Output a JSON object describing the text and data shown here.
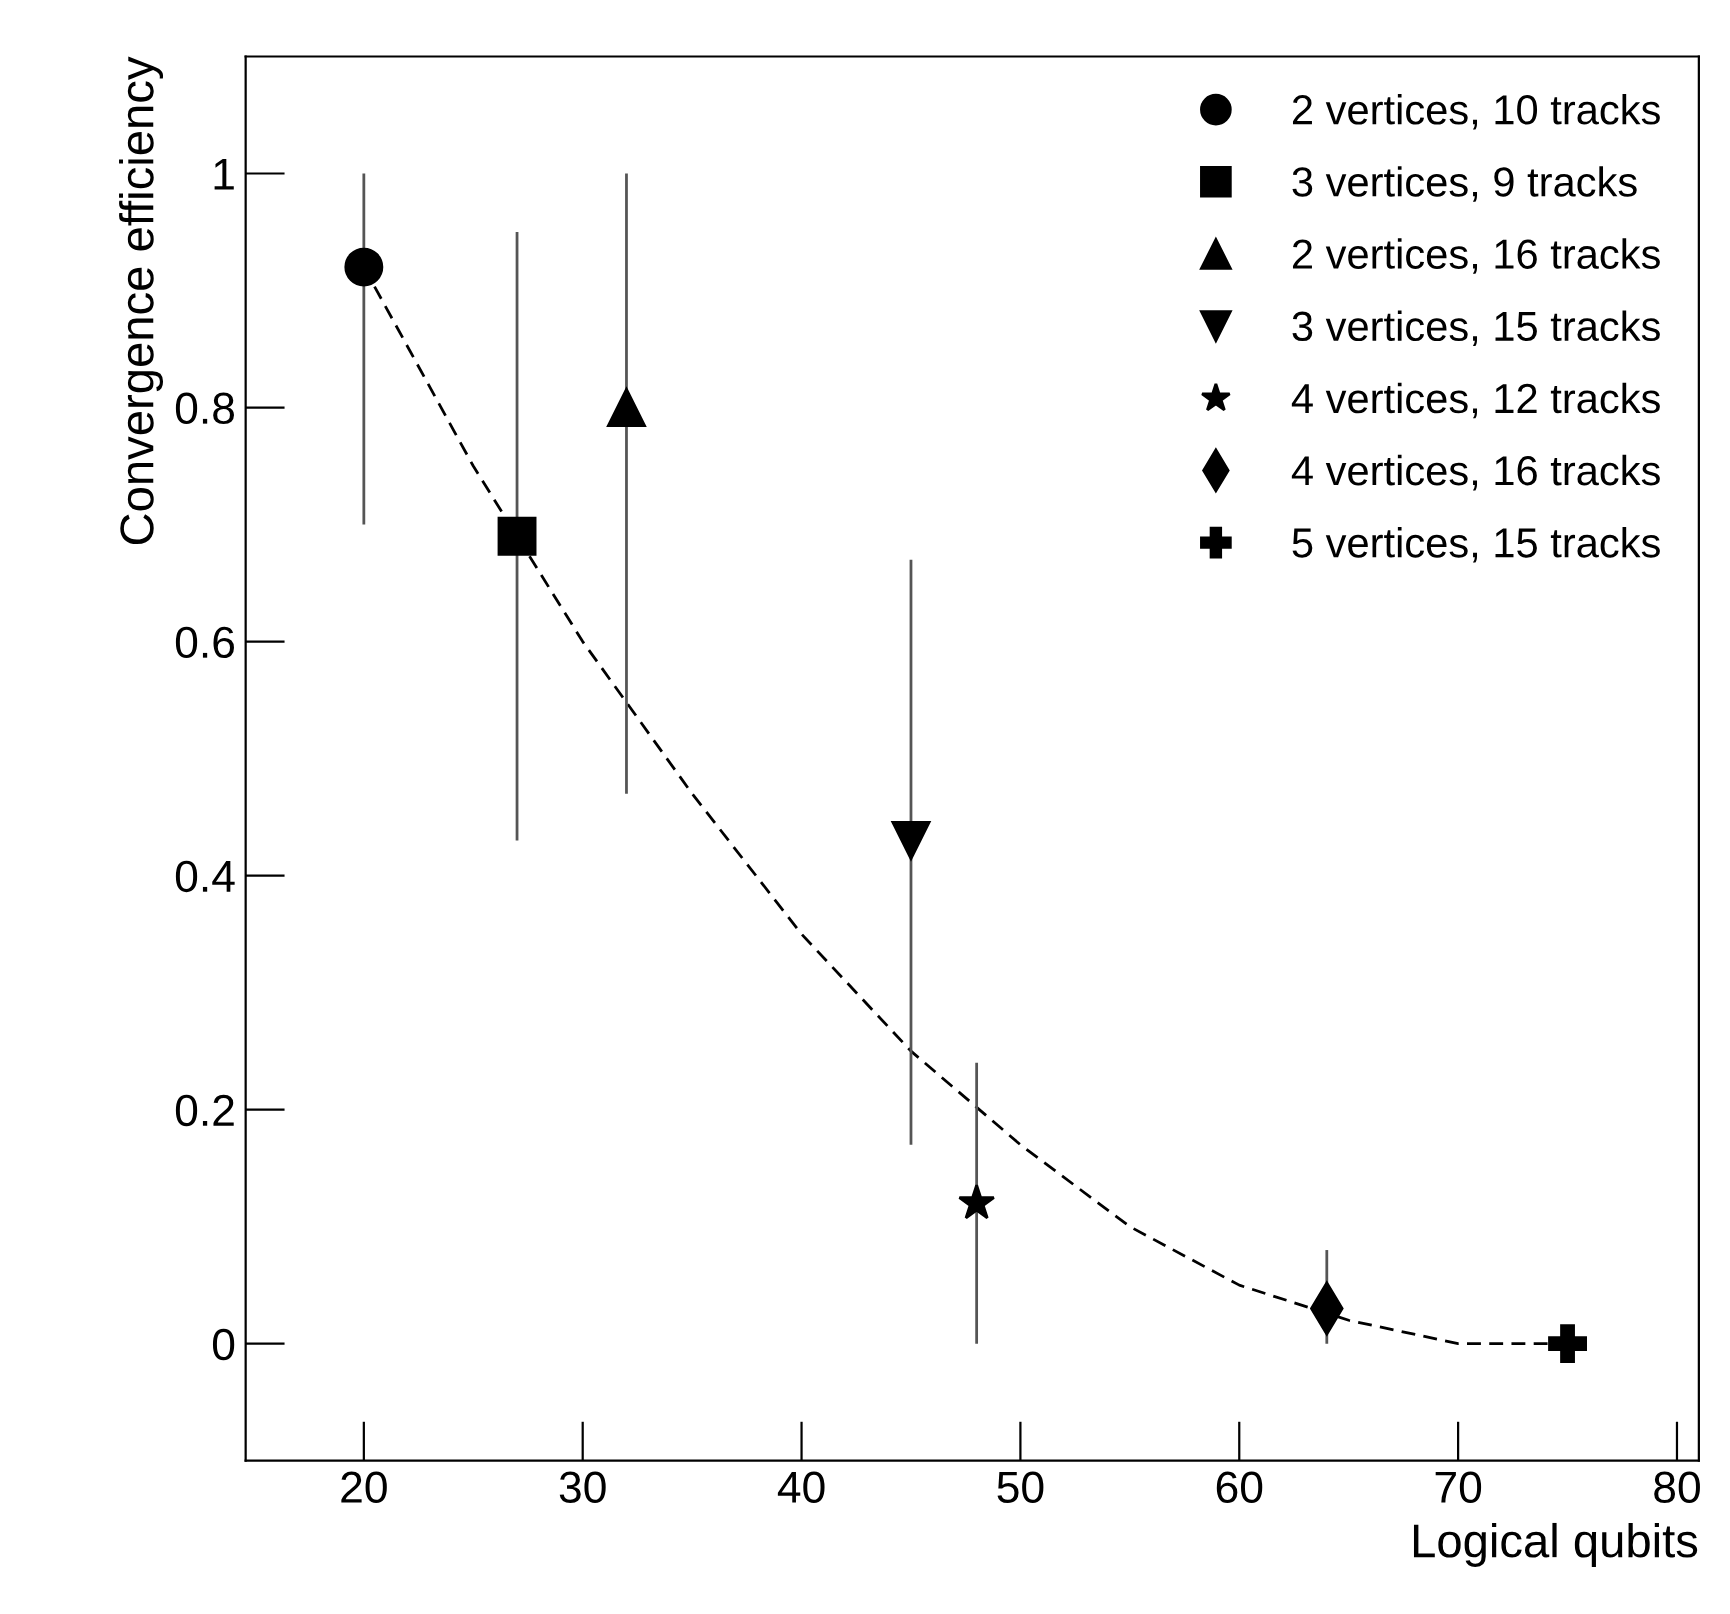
{
  "chart_data": {
    "type": "scatter",
    "xlabel": "Logical qubits",
    "ylabel": "Convergence efficiency",
    "xlim": [
      14.6,
      81
    ],
    "ylim": [
      -0.1,
      1.1
    ],
    "xticks": [
      20,
      30,
      40,
      50,
      60,
      70,
      80
    ],
    "yticks": [
      0,
      0.2,
      0.4,
      0.6,
      0.8,
      1
    ],
    "grid": false,
    "legend": "top right",
    "series": [
      {
        "name": "2 vertices, 10 tracks",
        "color": "#000000",
        "marker": "circle",
        "x": [
          20
        ],
        "values": [
          0.92
        ],
        "errors": [
          [
            0.7,
            1.0
          ]
        ]
      },
      {
        "name": "3 vertices, 9 tracks",
        "color": "#000000",
        "marker": "square",
        "x": [
          27
        ],
        "values": [
          0.69
        ],
        "errors": [
          [
            0.43,
            0.95
          ]
        ]
      },
      {
        "name": "2 vertices, 16 tracks",
        "color": "#000000",
        "marker": "triangle",
        "x": [
          32
        ],
        "values": [
          0.8
        ],
        "errors": [
          [
            0.47,
            1.0
          ]
        ]
      },
      {
        "name": "3 vertices, 15 tracks",
        "color": "#000000",
        "marker": "triangle_down",
        "x": [
          45
        ],
        "values": [
          0.43
        ],
        "errors": [
          [
            0.17,
            0.67
          ]
        ]
      },
      {
        "name": "4 vertices, 12 tracks",
        "color": "#000000",
        "marker": "star",
        "x": [
          48
        ],
        "values": [
          0.12
        ],
        "errors": [
          [
            0.0,
            0.24
          ]
        ]
      },
      {
        "name": "4 vertices, 16 tracks",
        "color": "#000000",
        "marker": "diamond",
        "x": [
          64
        ],
        "values": [
          0.03
        ],
        "errors": [
          [
            0.0,
            0.08
          ]
        ]
      },
      {
        "name": "5 vertices, 15 tracks",
        "color": "#000000",
        "marker": "cross",
        "x": [
          75
        ],
        "values": [
          0.0
        ]
      },
      {
        "type": "line",
        "color": "#000000",
        "line_style": "dashed",
        "marker": "none",
        "x": [
          20,
          25,
          30,
          35,
          40,
          45,
          50,
          55,
          60,
          65,
          70,
          72,
          75
        ],
        "values": [
          0.92,
          0.75,
          0.6,
          0.47,
          0.35,
          0.25,
          0.17,
          0.1,
          0.05,
          0.02,
          0.0,
          0.0,
          0.0
        ]
      }
    ]
  }
}
